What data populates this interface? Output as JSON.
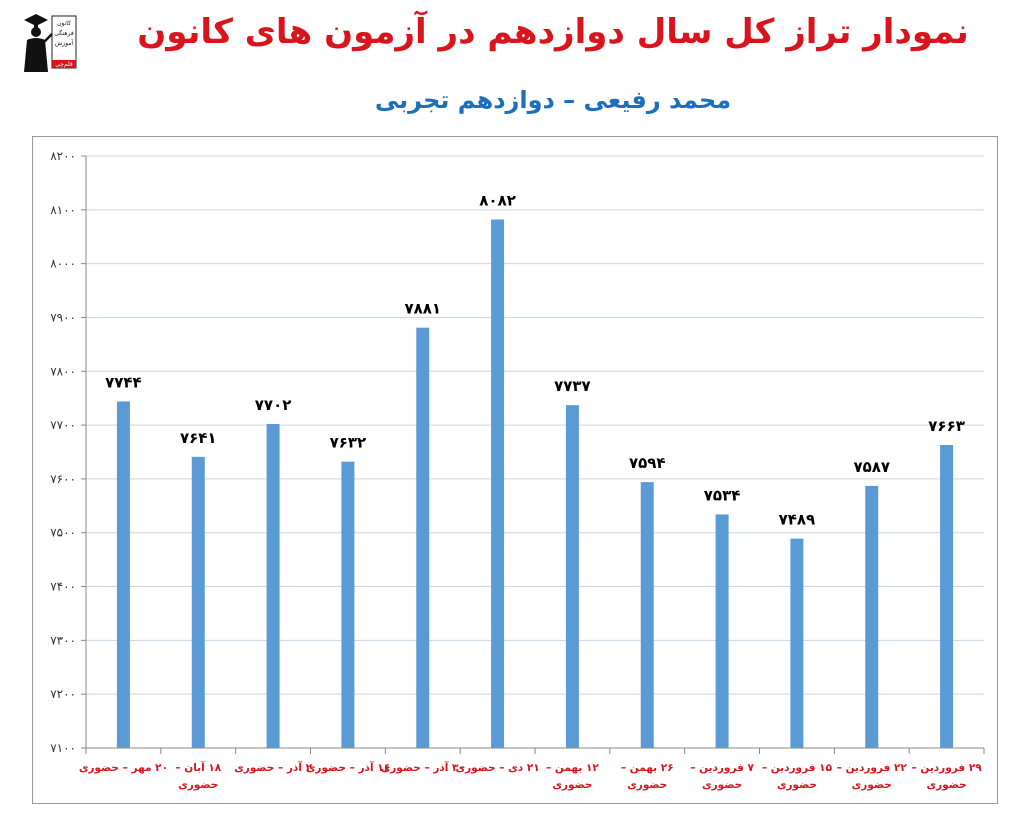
{
  "title": "نمودار تراز کل سال دوازدهم در آزمون های کانون",
  "subtitle": "محمد رفیعی – دوازدهم تجربی",
  "logo": {
    "icon": "graduate-icon",
    "lines": [
      "کانون",
      "فرهنگی",
      "آموزش",
      "قلم‌چی"
    ]
  },
  "colors": {
    "title": "#d9141c",
    "subtitle": "#1b6fbd",
    "bar": "#5b9bd5",
    "category_label": "#d9141c",
    "value_label": "#000000",
    "grid": "#c9d7e8"
  },
  "chart_data": {
    "type": "bar",
    "title": "",
    "xlabel": "",
    "ylabel": "",
    "ylim": [
      7100,
      8200
    ],
    "yticks": [
      "۷۱۰۰",
      "۷۲۰۰",
      "۷۳۰۰",
      "۷۴۰۰",
      "۷۵۰۰",
      "۷۶۰۰",
      "۷۷۰۰",
      "۷۸۰۰",
      "۷۹۰۰",
      "۸۰۰۰",
      "۸۱۰۰",
      "۸۲۰۰"
    ],
    "ytick_values": [
      7100,
      7200,
      7300,
      7400,
      7500,
      7600,
      7700,
      7800,
      7900,
      8000,
      8100,
      8200
    ],
    "grid": true,
    "legend": false,
    "categories": [
      [
        "۲۰ مهر – حضوری"
      ],
      [
        "۱۸ آبان –",
        "حضوری"
      ],
      [
        "۲ آذر – حضوری"
      ],
      [
        "۱۶ آذر – حضوری"
      ],
      [
        "۳۰ آذر – حضوری"
      ],
      [
        "۲۱ دی – حضوری"
      ],
      [
        "۱۲ بهمن –",
        "حضوری"
      ],
      [
        "۲۶ بهمن –",
        "حضوری"
      ],
      [
        "۷ فروردین –",
        "حضوری"
      ],
      [
        "۱۵ فروردین –",
        "حضوری"
      ],
      [
        "۲۲ فروردین –",
        "حضوری"
      ],
      [
        "۲۹ فروردین –",
        "حضوری"
      ]
    ],
    "values": [
      7744,
      7641,
      7702,
      7632,
      7881,
      8082,
      7737,
      7594,
      7534,
      7489,
      7587,
      7663
    ],
    "value_labels": [
      "۷۷۴۴",
      "۷۶۴۱",
      "۷۷۰۲",
      "۷۶۳۲",
      "۷۸۸۱",
      "۸۰۸۲",
      "۷۷۳۷",
      "۷۵۹۴",
      "۷۵۳۴",
      "۷۴۸۹",
      "۷۵۸۷",
      "۷۶۶۳"
    ]
  }
}
